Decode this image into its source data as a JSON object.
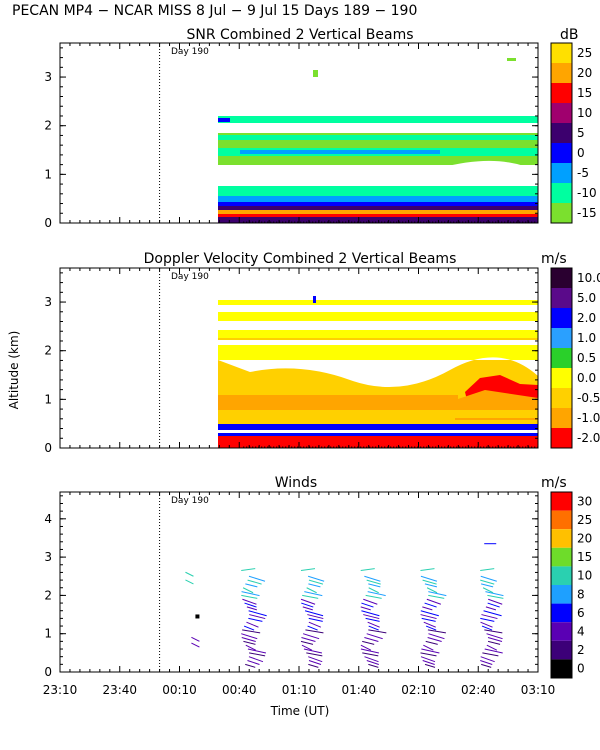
{
  "header": "PECAN MP4 − NCAR MISS    8 Jul −   9 Jul 15 Days 189 − 190",
  "y_axis_label": "Altitude (km)",
  "x_axis_label": "Time (UT)",
  "x_ticks": [
    "23:10",
    "23:40",
    "00:10",
    "00:40",
    "01:10",
    "01:40",
    "02:10",
    "02:40",
    "03:10"
  ],
  "day_marker": "Day 190",
  "chart_data": [
    {
      "type": "heatmap",
      "title": "SNR Combined 2 Vertical Beams",
      "units": "dB",
      "ylim": [
        0,
        3.7
      ],
      "yticks": [
        "0",
        "1",
        "2",
        "3"
      ],
      "colorbar": {
        "labels": [
          "25",
          "20",
          "15",
          "10",
          "5",
          "0",
          "-5",
          "-10",
          "-15"
        ],
        "colors": [
          "#ffe000",
          "#ffa500",
          "#ff0000",
          "#a0006e",
          "#3c006e",
          "#0000ff",
          "#00a0ff",
          "#00ffa0",
          "#7be02e"
        ]
      }
    },
    {
      "type": "heatmap",
      "title": "Doppler Velocity Combined 2 Vertical Beams",
      "units": "m/s",
      "ylim": [
        0,
        3.7
      ],
      "yticks": [
        "0",
        "1",
        "2",
        "3"
      ],
      "colorbar": {
        "labels": [
          "10.0",
          "5.0",
          "2.0",
          "1.0",
          "0.5",
          "0.0",
          "-0.5",
          "-1.0",
          "-2.0"
        ],
        "colors": [
          "#2a0030",
          "#5a0a8a",
          "#0000ff",
          "#2aa0ff",
          "#2ad02a",
          "#ffff00",
          "#ffd000",
          "#ffa500",
          "#ff0000"
        ]
      }
    },
    {
      "type": "scatter",
      "title": "Winds",
      "units": "m/s",
      "ylim": [
        0,
        4.7
      ],
      "yticks": [
        "0",
        "1",
        "2",
        "3",
        "4"
      ],
      "colorbar": {
        "labels": [
          "30",
          "25",
          "20",
          "15",
          "10",
          "8",
          "6",
          "4",
          "2",
          "0"
        ],
        "colors": [
          "#ff0000",
          "#ff7000",
          "#ffc000",
          "#6edc2a",
          "#2ad0b0",
          "#1ea0ff",
          "#0000ff",
          "#5a00b4",
          "#3c0078",
          "#000000"
        ]
      },
      "profile_times": [
        "00:43",
        "01:13",
        "01:43",
        "02:13",
        "02:43"
      ]
    }
  ]
}
